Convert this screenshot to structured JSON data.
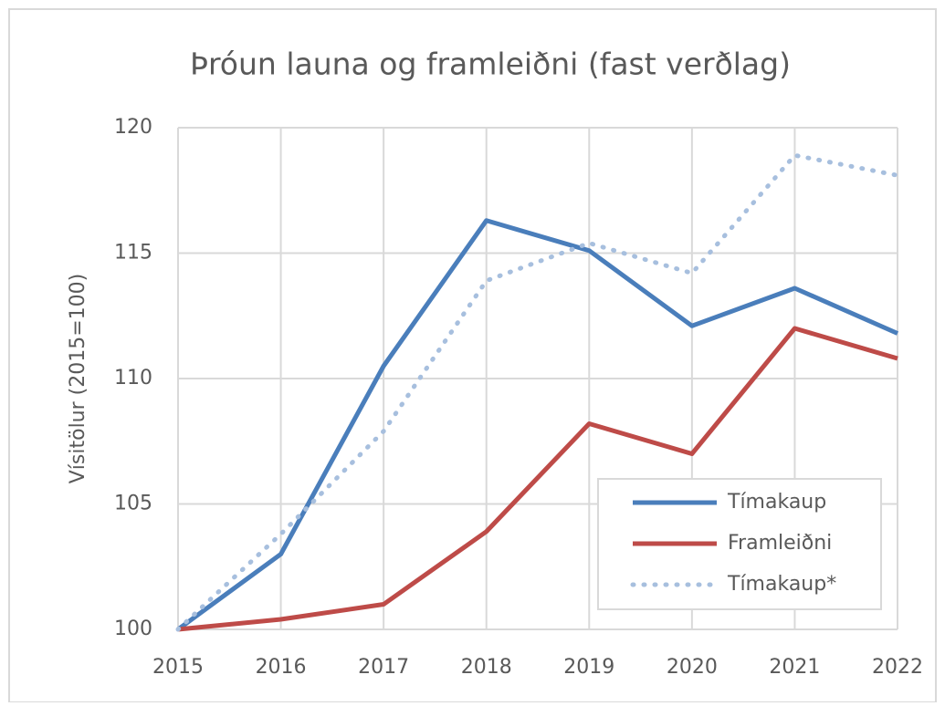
{
  "chart_data": {
    "type": "line",
    "title": "Þróun launa og framleiðni (fast verðlag)",
    "y_label": "Vísitölur (2015=100)",
    "categories": [
      "2015",
      "2016",
      "2017",
      "2018",
      "2019",
      "2020",
      "2021",
      "2022"
    ],
    "series": [
      {
        "name": "Tímakaup",
        "color": "#4a7ebb",
        "style": "solid",
        "values": [
          100,
          103.0,
          110.5,
          116.3,
          115.1,
          112.1,
          113.6,
          111.8
        ]
      },
      {
        "name": "Framleiðni",
        "color": "#be4b48",
        "style": "solid",
        "values": [
          100,
          100.4,
          101.0,
          103.9,
          108.2,
          107.0,
          112.0,
          110.8
        ]
      },
      {
        "name": "Tímakaup*",
        "color": "#a7bfde",
        "style": "dotted",
        "values": [
          100,
          103.8,
          107.9,
          113.9,
          115.4,
          114.2,
          118.9,
          118.1
        ]
      }
    ],
    "ylim": [
      100,
      120
    ],
    "yticks": [
      100,
      105,
      110,
      115,
      120
    ],
    "grid": true,
    "legend": "lower right"
  }
}
